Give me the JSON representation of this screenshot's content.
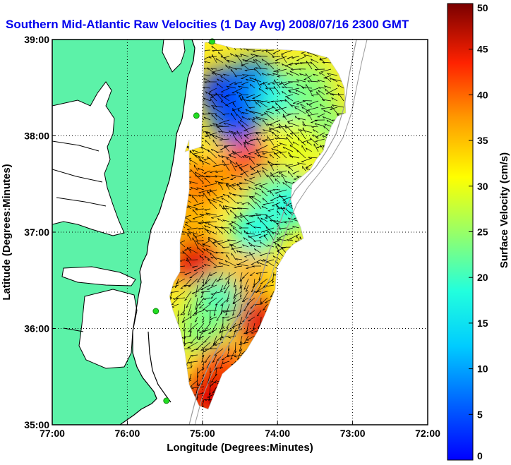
{
  "title": "Southern Mid-Atlantic Raw Velocities (1 Day Avg) 2008/07/16 2300 GMT",
  "xlabel": "Longitude (Degrees:Minutes)",
  "ylabel": "Latitude (Degrees:Minutes)",
  "colorbar_label": "Surface Velocity (cm/s)",
  "x_ticks": [
    "77:00",
    "76:00",
    "75:00",
    "74:00",
    "73:00",
    "72:00"
  ],
  "y_ticks": [
    "39:00",
    "38:00",
    "37:00",
    "36:00",
    "35:00"
  ],
  "colorbar_ticks": [
    "0",
    "5",
    "10",
    "15",
    "20",
    "25",
    "30",
    "35",
    "40",
    "45",
    "50"
  ],
  "colors": {
    "land": "#5cf2a8",
    "title": "#0000ee",
    "coast": "#000000",
    "bathymetry": "#9a9a9a",
    "station": "#22dd22"
  },
  "chart_data": {
    "type": "heatmap",
    "title": "Southern Mid-Atlantic Raw Velocities (1 Day Avg) 2008/07/16 2300 GMT",
    "xlabel": "Longitude (Degrees:Minutes)",
    "ylabel": "Latitude (Degrees:Minutes)",
    "xlim": [
      -77,
      -72
    ],
    "ylim": [
      35,
      39
    ],
    "grid": true,
    "colorscale": "jet",
    "value_range": [
      0,
      50
    ],
    "value_unit": "cm/s",
    "colorbar_label": "Surface Velocity (cm/s)",
    "stations": [
      {
        "lon": -74.87,
        "lat": 38.98
      },
      {
        "lon": -75.08,
        "lat": 38.21
      },
      {
        "lon": -75.62,
        "lat": 36.18
      },
      {
        "lon": -75.48,
        "lat": 35.25
      }
    ],
    "regions": [
      {
        "lon": -74.7,
        "lat": 38.45,
        "speed": 8
      },
      {
        "lon": -74.55,
        "lat": 38.15,
        "speed": 10
      },
      {
        "lon": -74.3,
        "lat": 38.55,
        "speed": 12
      },
      {
        "lon": -73.95,
        "lat": 38.4,
        "speed": 20
      },
      {
        "lon": -73.6,
        "lat": 38.5,
        "speed": 25
      },
      {
        "lon": -73.4,
        "lat": 38.1,
        "speed": 25
      },
      {
        "lon": -73.7,
        "lat": 37.9,
        "speed": 30
      },
      {
        "lon": -74.6,
        "lat": 37.6,
        "speed": 33
      },
      {
        "lon": -74.4,
        "lat": 37.7,
        "speed": 40
      },
      {
        "lon": -74.1,
        "lat": 37.4,
        "speed": 25
      },
      {
        "lon": -73.8,
        "lat": 37.3,
        "speed": 20
      },
      {
        "lon": -75.05,
        "lat": 37.5,
        "speed": 38
      },
      {
        "lon": -75.2,
        "lat": 37.1,
        "speed": 35
      },
      {
        "lon": -75.1,
        "lat": 36.7,
        "speed": 45
      },
      {
        "lon": -74.3,
        "lat": 37.0,
        "speed": 20
      },
      {
        "lon": -74.4,
        "lat": 36.55,
        "speed": 35
      },
      {
        "lon": -74.3,
        "lat": 36.1,
        "speed": 45
      },
      {
        "lon": -74.8,
        "lat": 36.3,
        "speed": 22
      },
      {
        "lon": -75.0,
        "lat": 36.0,
        "speed": 25
      },
      {
        "lon": -74.75,
        "lat": 35.6,
        "speed": 40
      },
      {
        "lon": -74.9,
        "lat": 35.3,
        "speed": 45
      },
      {
        "lon": -74.45,
        "lat": 35.2,
        "speed": 47
      }
    ]
  }
}
